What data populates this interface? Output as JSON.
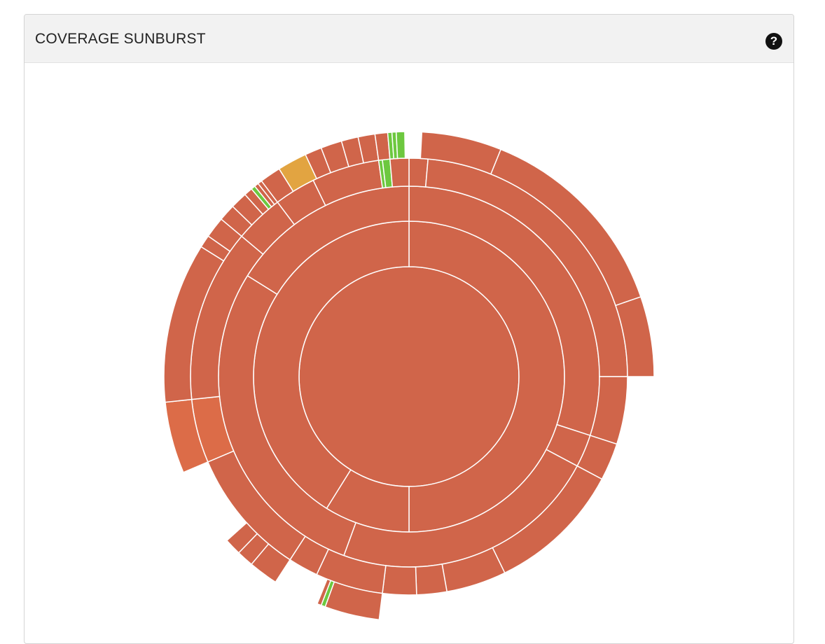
{
  "panel": {
    "title": "COVERAGE SUNBURST",
    "help_icon": "question-circle-icon"
  },
  "colors": {
    "low": "#d0654a",
    "low_alt": "#dc6c48",
    "medium": "#e2a441",
    "high": "#6dc83f",
    "stroke": "#ffffff"
  },
  "chart_data": {
    "type": "sunburst",
    "title": "COVERAGE SUNBURST",
    "arcs": [
      {
        "depth": 0,
        "start": 0,
        "end": 360,
        "status": "low"
      },
      {
        "depth": 1,
        "start": 0,
        "end": 180,
        "status": "low"
      },
      {
        "depth": 1,
        "start": 180,
        "end": 212,
        "status": "low"
      },
      {
        "depth": 1,
        "start": 212,
        "end": 360,
        "status": "low"
      },
      {
        "depth": 2,
        "start": 0,
        "end": 108,
        "status": "low"
      },
      {
        "depth": 2,
        "start": 108,
        "end": 118,
        "status": "low"
      },
      {
        "depth": 2,
        "start": 118,
        "end": 200,
        "status": "low"
      },
      {
        "depth": 2,
        "start": 200,
        "end": 302,
        "status": "low"
      },
      {
        "depth": 2,
        "start": 302,
        "end": 360,
        "status": "low"
      },
      {
        "depth": 3,
        "start": 0,
        "end": 5,
        "status": "low"
      },
      {
        "depth": 3,
        "start": 5,
        "end": 90,
        "status": "low"
      },
      {
        "depth": 3,
        "start": 90,
        "end": 108,
        "status": "low"
      },
      {
        "depth": 3,
        "start": 108,
        "end": 118,
        "status": "low"
      },
      {
        "depth": 3,
        "start": 118,
        "end": 154,
        "status": "low"
      },
      {
        "depth": 3,
        "start": 154,
        "end": 170,
        "status": "low"
      },
      {
        "depth": 3,
        "start": 170,
        "end": 178,
        "status": "low"
      },
      {
        "depth": 3,
        "start": 178,
        "end": 187,
        "status": "low"
      },
      {
        "depth": 3,
        "start": 187,
        "end": 205,
        "status": "low"
      },
      {
        "depth": 3,
        "start": 205,
        "end": 213,
        "status": "low"
      },
      {
        "depth": 3,
        "start": 213,
        "end": 247,
        "status": "low"
      },
      {
        "depth": 3,
        "start": 247,
        "end": 264,
        "status": "low_alt"
      },
      {
        "depth": 3,
        "start": 264,
        "end": 310,
        "status": "low"
      },
      {
        "depth": 3,
        "start": 310,
        "end": 323,
        "status": "low"
      },
      {
        "depth": 3,
        "start": 323,
        "end": 334,
        "status": "low"
      },
      {
        "depth": 3,
        "start": 334,
        "end": 352,
        "status": "low"
      },
      {
        "depth": 3,
        "start": 352,
        "end": 353,
        "status": "high"
      },
      {
        "depth": 3,
        "start": 353,
        "end": 355,
        "status": "high"
      },
      {
        "depth": 3,
        "start": 355,
        "end": 360,
        "status": "low"
      },
      {
        "depth": 4,
        "start": 3,
        "end": 22,
        "status": "low"
      },
      {
        "depth": 4,
        "start": 22,
        "end": 71,
        "status": "low"
      },
      {
        "depth": 4,
        "start": 71,
        "end": 90,
        "status": "low"
      },
      {
        "depth": 4,
        "start": 187,
        "end": 200,
        "status": "low"
      },
      {
        "depth": 4,
        "start": 200,
        "end": 201,
        "status": "high"
      },
      {
        "depth": 4,
        "start": 201,
        "end": 202,
        "status": "low"
      },
      {
        "depth": 4,
        "start": 213,
        "end": 220,
        "status": "low"
      },
      {
        "depth": 4,
        "start": 220,
        "end": 224,
        "status": "low"
      },
      {
        "depth": 4,
        "start": 224,
        "end": 228,
        "status": "low"
      },
      {
        "depth": 4,
        "start": 247,
        "end": 264,
        "status": "low_alt"
      },
      {
        "depth": 4,
        "start": 264,
        "end": 302,
        "status": "low"
      },
      {
        "depth": 4,
        "start": 302,
        "end": 305,
        "status": "low"
      },
      {
        "depth": 4,
        "start": 305,
        "end": 310,
        "status": "low"
      },
      {
        "depth": 4,
        "start": 310,
        "end": 314,
        "status": "low"
      },
      {
        "depth": 4,
        "start": 314,
        "end": 318,
        "status": "low"
      },
      {
        "depth": 4,
        "start": 318,
        "end": 320,
        "status": "low"
      },
      {
        "depth": 4,
        "start": 320,
        "end": 321,
        "status": "high"
      },
      {
        "depth": 4,
        "start": 321,
        "end": 322,
        "status": "low"
      },
      {
        "depth": 4,
        "start": 322,
        "end": 323,
        "status": "low"
      },
      {
        "depth": 4,
        "start": 323,
        "end": 328,
        "status": "low"
      },
      {
        "depth": 4,
        "start": 328,
        "end": 335,
        "status": "medium"
      },
      {
        "depth": 4,
        "start": 335,
        "end": 339,
        "status": "low"
      },
      {
        "depth": 4,
        "start": 339,
        "end": 344,
        "status": "low"
      },
      {
        "depth": 4,
        "start": 344,
        "end": 348,
        "status": "low"
      },
      {
        "depth": 4,
        "start": 348,
        "end": 352,
        "status": "low"
      },
      {
        "depth": 4,
        "start": 352,
        "end": 355,
        "status": "low"
      },
      {
        "depth": 4,
        "start": 355,
        "end": 356,
        "status": "high"
      },
      {
        "depth": 4,
        "start": 356,
        "end": 357,
        "status": "high"
      },
      {
        "depth": 4,
        "start": 357,
        "end": 359,
        "status": "high"
      }
    ]
  }
}
